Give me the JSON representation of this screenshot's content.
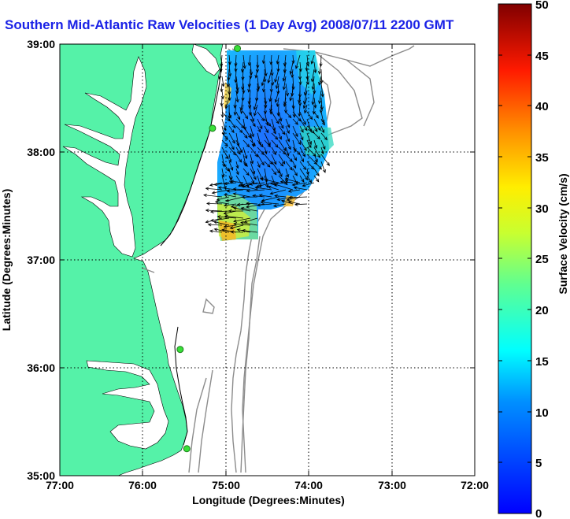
{
  "title": "Southern Mid-Atlantic Raw Velocities (1 Day Avg) 2008/07/11 2200 GMT",
  "x_axis": {
    "label": "Longitude (Degrees:Minutes)",
    "ticks": [
      "77:00",
      "76:00",
      "75:00",
      "74:00",
      "73:00",
      "72:00"
    ]
  },
  "y_axis": {
    "label": "Latitude (Degrees:Minutes)",
    "ticks": [
      "39:00",
      "38:00",
      "37:00",
      "36:00",
      "35:00"
    ]
  },
  "colorbar": {
    "label": "Surface Velocity (cm/s)",
    "ticks": [
      "50",
      "45",
      "40",
      "35",
      "30",
      "25",
      "20",
      "15",
      "10",
      "5",
      "0"
    ],
    "min": 0,
    "max": 50,
    "colormap": "jet"
  },
  "map": {
    "extent": {
      "lon": [
        -77,
        -72
      ],
      "lat": [
        35,
        39
      ]
    },
    "grid": true,
    "land_color": "#55f2a8",
    "water_color": "#ffffff",
    "bathymetry_color": "#8c8c8c",
    "radar_sites": [
      {
        "lon": -74.86,
        "lat": 38.96
      },
      {
        "lon": -75.16,
        "lat": 38.22
      },
      {
        "lon": -75.55,
        "lat": 36.17
      },
      {
        "lon": -75.47,
        "lat": 35.25
      }
    ]
  }
}
